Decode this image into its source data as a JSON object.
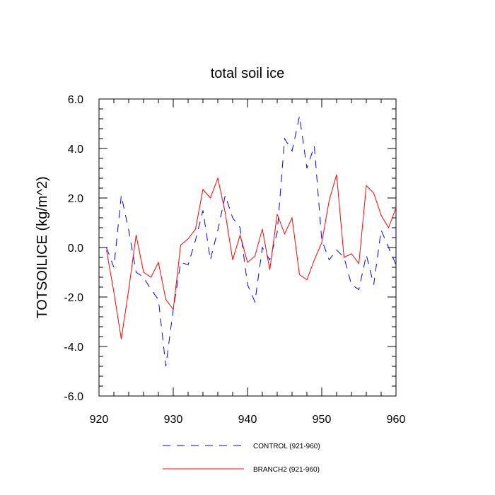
{
  "chart_data": {
    "type": "line",
    "title": "total soil ice",
    "xlabel": "",
    "ylabel": "TOTSOILICE  (kg/m^2)",
    "xlim": [
      920,
      960
    ],
    "ylim": [
      -6,
      6
    ],
    "xticks": [
      920,
      930,
      940,
      950,
      960
    ],
    "yticks": [
      -6,
      -4,
      -2,
      0,
      2,
      4,
      6
    ],
    "xtick_labels": [
      "920",
      "930",
      "940",
      "950",
      "960"
    ],
    "ytick_labels": [
      "-6.0",
      "-4.0",
      "-2.0",
      "0.0",
      "2.0",
      "4.0",
      "6.0"
    ],
    "grid": false,
    "legend_position": "bottom",
    "x": [
      921,
      922,
      923,
      924,
      925,
      926,
      927,
      928,
      929,
      930,
      931,
      932,
      933,
      934,
      935,
      936,
      937,
      938,
      939,
      940,
      941,
      942,
      943,
      944,
      945,
      946,
      947,
      948,
      949,
      950,
      951,
      952,
      953,
      954,
      955,
      956,
      957,
      958,
      959,
      960
    ],
    "series": [
      {
        "name": "CONTROL (921-960)",
        "color": "#0000ff",
        "dash": "dashed",
        "values": [
          0.0,
          -0.8,
          2.1,
          0.7,
          -1.0,
          -1.2,
          -1.7,
          -2.1,
          -4.8,
          -2.5,
          -0.6,
          -0.7,
          0.3,
          1.5,
          -0.5,
          0.7,
          2.1,
          1.2,
          0.8,
          -1.5,
          -2.2,
          0.0,
          -0.5,
          0.6,
          4.4,
          3.9,
          5.3,
          3.2,
          4.1,
          0.3,
          -0.5,
          -0.1,
          -0.4,
          -1.5,
          -1.7,
          -0.3,
          -1.5,
          0.7,
          0.0,
          -0.7
        ]
      },
      {
        "name": "BRANCH2 (921-960)",
        "color": "#ff0000",
        "dash": "solid",
        "values": [
          -0.1,
          -1.8,
          -3.7,
          -1.7,
          0.5,
          -1.0,
          -1.2,
          -0.6,
          -2.1,
          -2.5,
          0.1,
          0.35,
          0.75,
          2.35,
          2.0,
          2.8,
          1.4,
          -0.5,
          0.5,
          -0.6,
          -0.35,
          0.75,
          -0.9,
          1.35,
          0.55,
          1.2,
          -1.1,
          -1.3,
          -0.5,
          0.2,
          1.9,
          2.95,
          -0.4,
          -0.25,
          -0.65,
          2.5,
          2.2,
          1.3,
          0.8,
          1.6
        ]
      }
    ]
  }
}
